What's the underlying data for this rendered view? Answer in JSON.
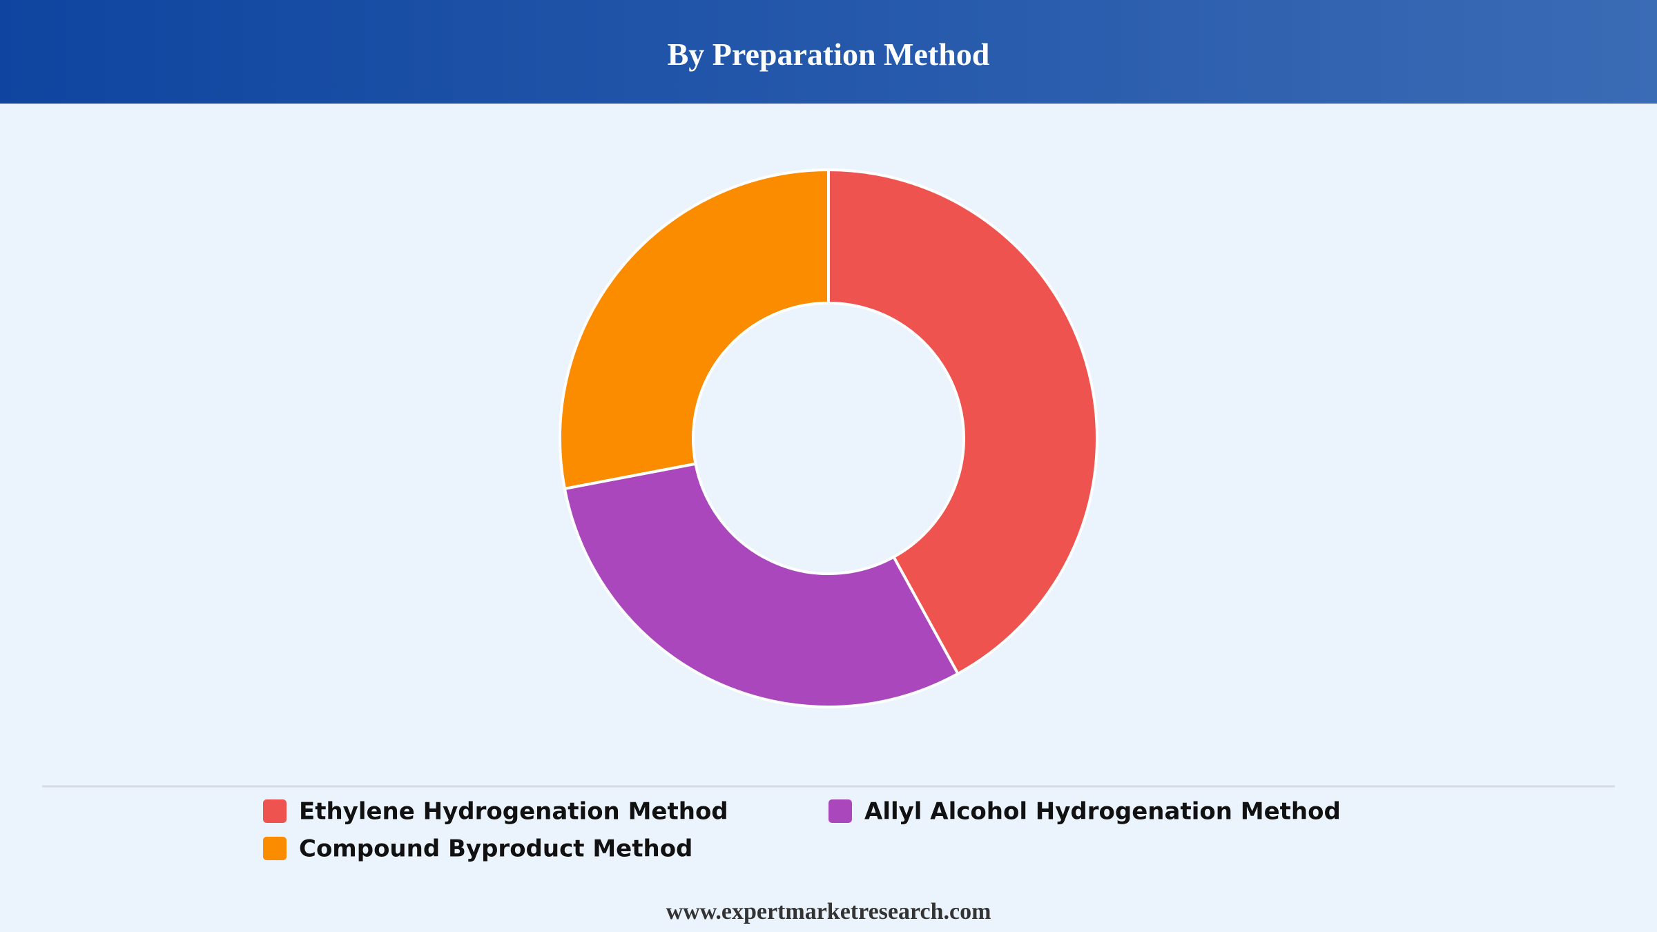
{
  "chart_data": {
    "type": "donut",
    "title": "By Preparation Method",
    "categories": [
      "Ethylene Hydrogenation Method",
      "Allyl Alcohol Hydrogenation Method",
      "Compound Byproduct Method"
    ],
    "values": [
      42,
      30,
      28
    ],
    "colors": [
      "#ef5350",
      "#ab47bc",
      "#fb8c00"
    ]
  },
  "footer": "www.expertmarketresearch.com"
}
